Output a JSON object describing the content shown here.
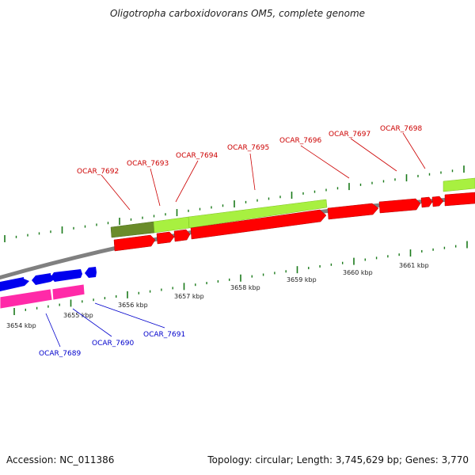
{
  "title": "Oligotropha carboxidovorans OM5, complete genome",
  "footer": {
    "accession": "Accession: NC_011386",
    "summary": "Topology: circular; Length: 3,745,629 bp; Genes: 3,770"
  },
  "colors": {
    "backbone": "#808080",
    "cds": "#ff0000",
    "gene_light": "#a8f040",
    "gene_dark": "#6a8c2a",
    "rna_blue": "#0000ee",
    "rna_pink": "#ff2aa8",
    "tick": "#1a7a1a",
    "label_red": "#cc0000",
    "label_blue": "#0000cc"
  },
  "ticks": {
    "labels": [
      "3654 kbp",
      "3655 kbp",
      "3656 kbp",
      "3657 kbp",
      "3658 kbp",
      "3659 kbp",
      "3660 kbp",
      "3661 kbp"
    ]
  },
  "top_labels": [
    "OCAR_7692",
    "OCAR_7693",
    "OCAR_7694",
    "OCAR_7695",
    "OCAR_7696",
    "OCAR_7697",
    "OCAR_7698"
  ],
  "bottom_labels": [
    "OCAR_7689",
    "OCAR_7690",
    "OCAR_7691"
  ]
}
